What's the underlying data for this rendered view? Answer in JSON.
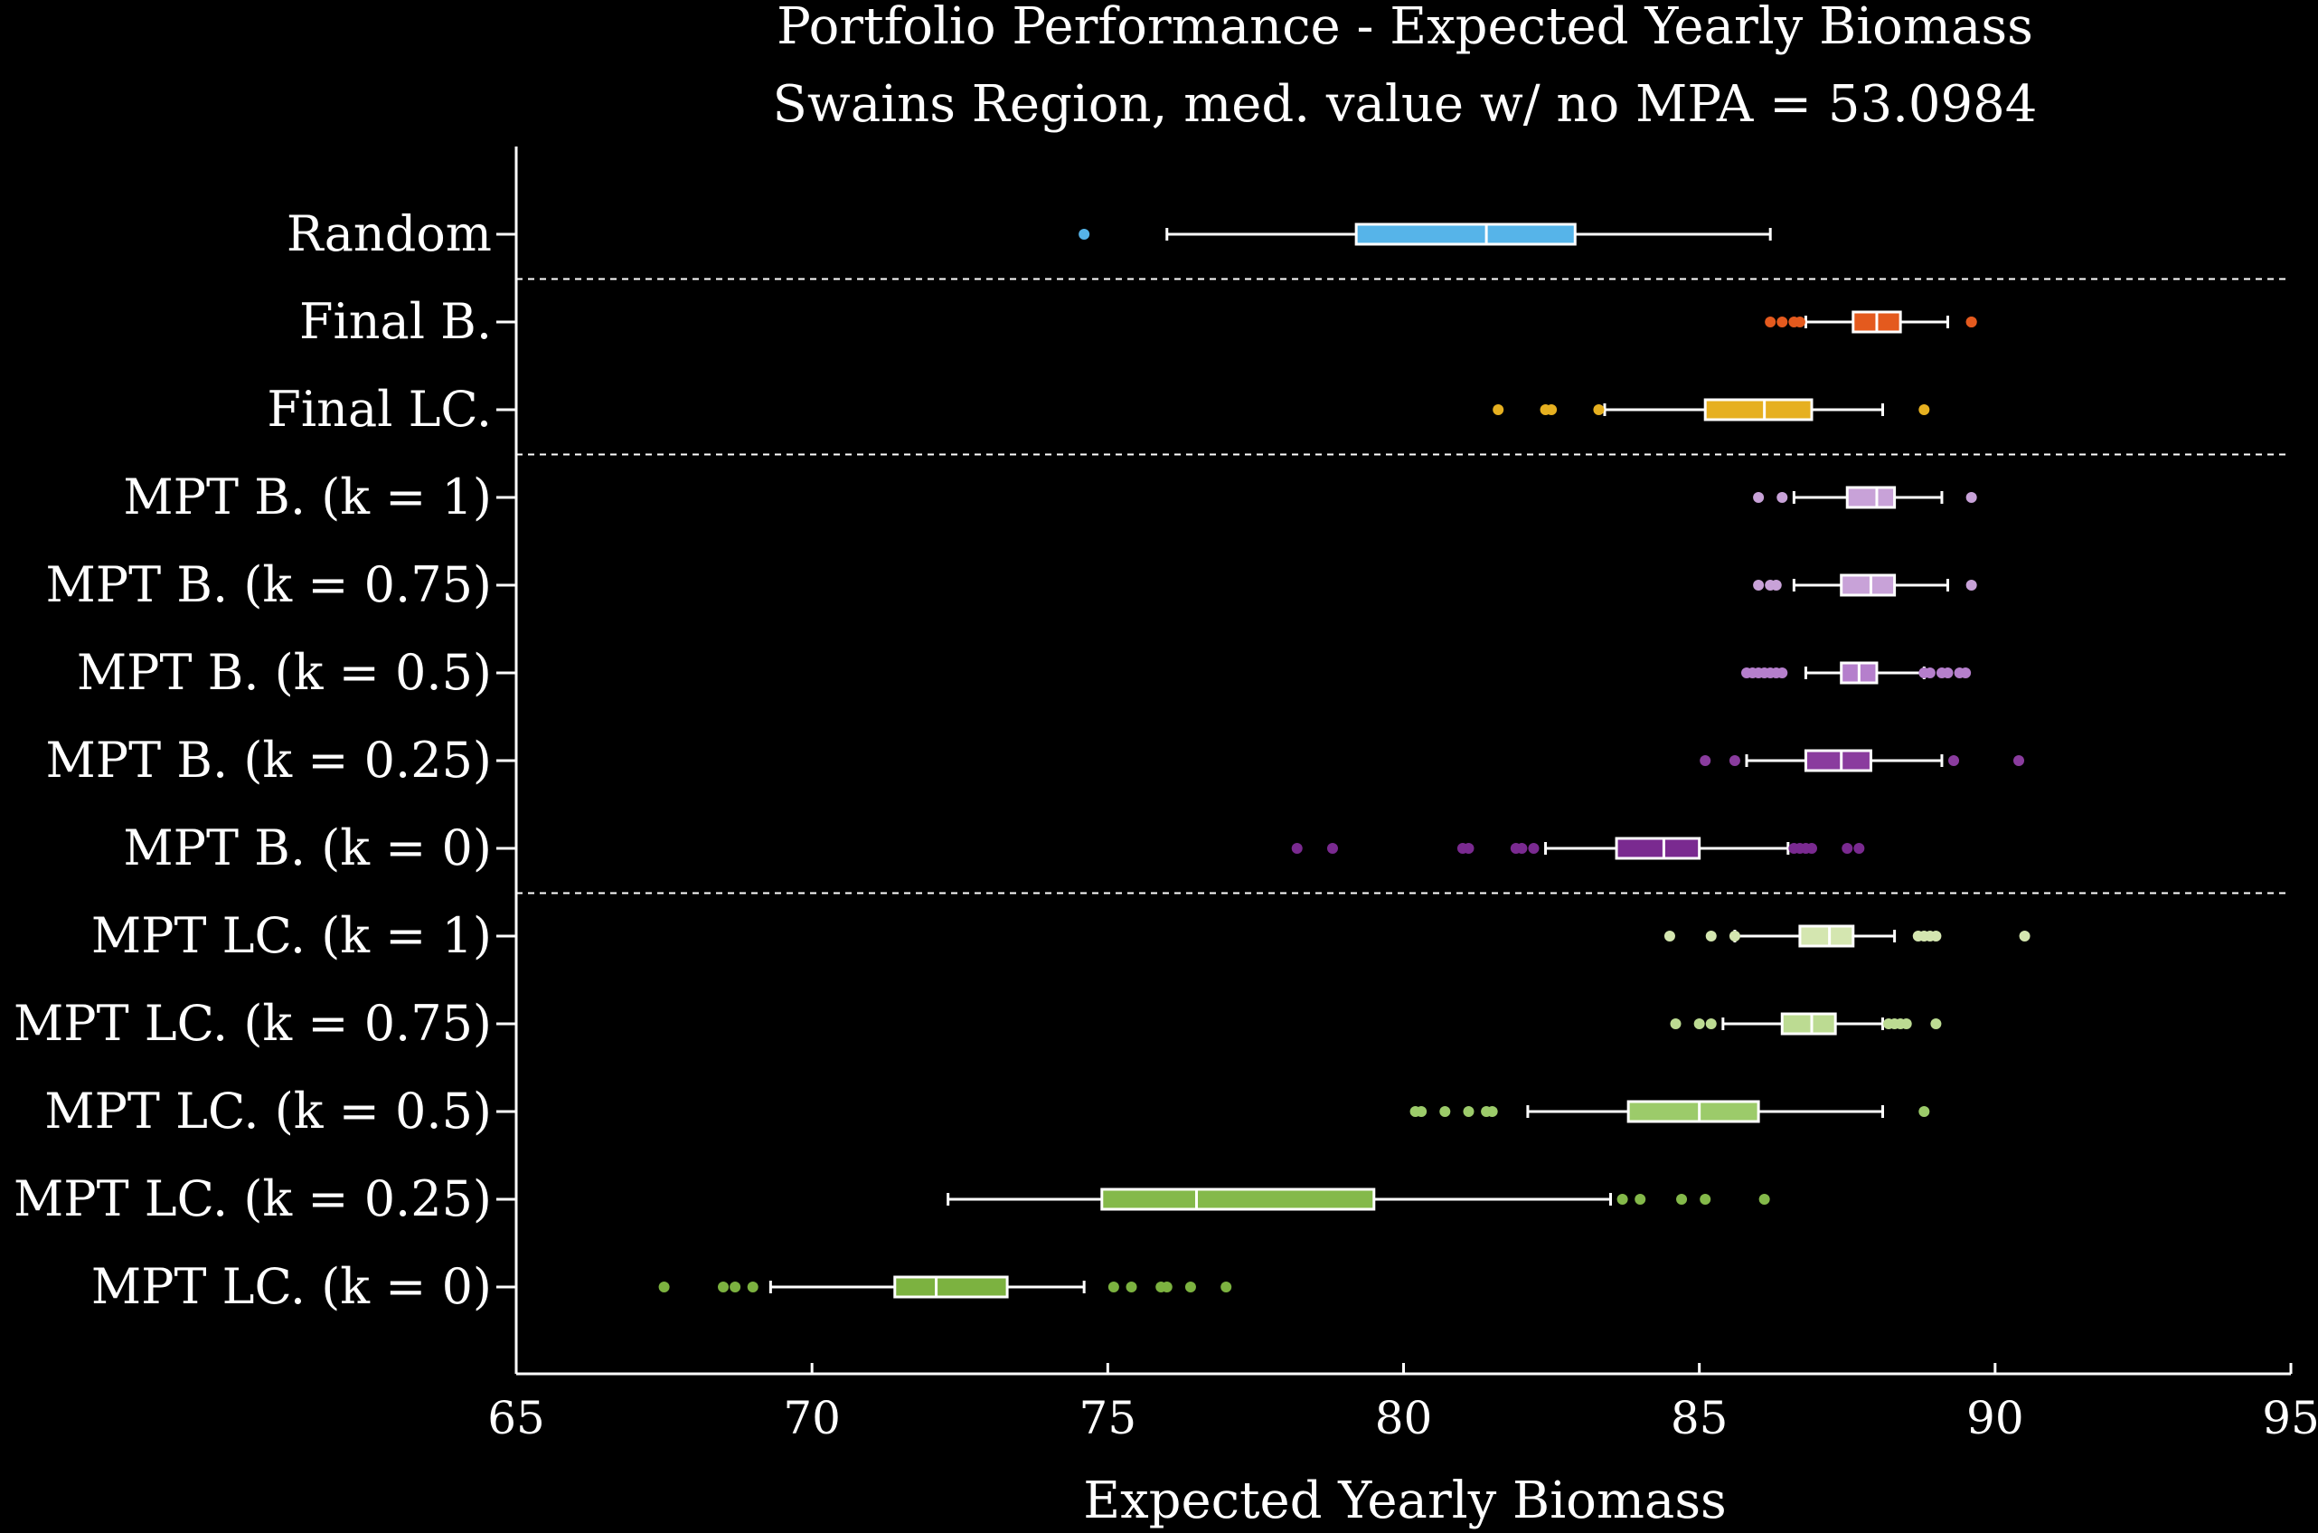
{
  "chart_data": {
    "type": "boxplot",
    "orientation": "horizontal",
    "title": "Portfolio Performance - Expected Yearly Biomass",
    "subtitle": "Swains Region, med. value w/ no MPA = 53.0984",
    "xlabel": "Expected Yearly Biomass",
    "xlim": [
      65,
      95
    ],
    "xticks": [
      65,
      70,
      75,
      80,
      85,
      90,
      95
    ],
    "grid": false,
    "group_separators_after": [
      "Random",
      "Final LC.",
      "MPT B. (k = 0)"
    ],
    "series": [
      {
        "label": "Random",
        "color": "#56b4e9",
        "whisker_low": 76.0,
        "q1": 79.2,
        "median": 81.4,
        "q3": 82.9,
        "whisker_high": 86.2,
        "outliers": [
          74.6
        ]
      },
      {
        "label": "Final B.",
        "color": "#e45a1e",
        "whisker_low": 86.8,
        "q1": 87.6,
        "median": 88.0,
        "q3": 88.4,
        "whisker_high": 89.2,
        "outliers": [
          86.2,
          86.4,
          86.6,
          86.7,
          89.6,
          89.6
        ]
      },
      {
        "label": "Final LC.",
        "color": "#e6b020",
        "whisker_low": 83.4,
        "q1": 85.1,
        "median": 86.1,
        "q3": 86.9,
        "whisker_high": 88.1,
        "outliers": [
          81.6,
          82.4,
          82.5,
          83.3,
          88.8
        ]
      },
      {
        "label": "MPT B. (k = 1)",
        "color": "#c8a2d8",
        "whisker_low": 86.6,
        "q1": 87.5,
        "median": 88.0,
        "q3": 88.3,
        "whisker_high": 89.1,
        "outliers": [
          86.0,
          86.4,
          89.6
        ]
      },
      {
        "label": "MPT B. (k = 0.75)",
        "color": "#c8a2d8",
        "whisker_low": 86.6,
        "q1": 87.4,
        "median": 87.9,
        "q3": 88.3,
        "whisker_high": 89.2,
        "outliers": [
          86.0,
          86.2,
          86.3,
          89.6
        ]
      },
      {
        "label": "MPT B. (k = 0.5)",
        "color": "#b57fcc",
        "whisker_low": 86.8,
        "q1": 87.4,
        "median": 87.7,
        "q3": 88.0,
        "whisker_high": 88.8,
        "outliers": [
          85.8,
          85.9,
          86.0,
          86.1,
          86.2,
          86.3,
          86.4,
          88.8,
          88.9,
          89.1,
          89.2,
          89.4,
          89.5
        ]
      },
      {
        "label": "MPT B. (k = 0.25)",
        "color": "#8a3c9e",
        "whisker_low": 85.8,
        "q1": 86.8,
        "median": 87.4,
        "q3": 87.9,
        "whisker_high": 89.1,
        "outliers": [
          85.1,
          85.6,
          89.3,
          90.4
        ]
      },
      {
        "label": "MPT B. (k = 0)",
        "color": "#7a2a90",
        "whisker_low": 82.4,
        "q1": 83.6,
        "median": 84.4,
        "q3": 85.0,
        "whisker_high": 86.5,
        "outliers": [
          78.2,
          78.8,
          81.0,
          81.1,
          81.9,
          82.0,
          82.2,
          86.6,
          86.7,
          86.8,
          86.9,
          87.5,
          87.7
        ]
      },
      {
        "label": "MPT LC. (k = 1)",
        "color": "#d4e6b0",
        "whisker_low": 85.6,
        "q1": 86.7,
        "median": 87.2,
        "q3": 87.6,
        "whisker_high": 88.3,
        "outliers": [
          84.5,
          85.2,
          85.6,
          88.7,
          88.8,
          88.9,
          89.0,
          90.5
        ]
      },
      {
        "label": "MPT LC. (k = 0.75)",
        "color": "#bcdb92",
        "whisker_low": 85.4,
        "q1": 86.4,
        "median": 86.9,
        "q3": 87.3,
        "whisker_high": 88.1,
        "outliers": [
          84.6,
          85.0,
          85.2,
          88.2,
          88.3,
          88.4,
          88.5,
          89.0
        ]
      },
      {
        "label": "MPT LC. (k = 0.5)",
        "color": "#9ccb6a",
        "whisker_low": 82.1,
        "q1": 83.8,
        "median": 85.0,
        "q3": 86.0,
        "whisker_high": 88.1,
        "outliers": [
          80.2,
          80.3,
          80.7,
          81.1,
          81.4,
          81.5,
          88.8
        ]
      },
      {
        "label": "MPT LC. (k = 0.25)",
        "color": "#84b94a",
        "whisker_low": 72.3,
        "q1": 74.9,
        "median": 76.5,
        "q3": 79.5,
        "whisker_high": 83.5,
        "outliers": [
          83.7,
          84.0,
          84.7,
          85.1,
          86.1
        ]
      },
      {
        "label": "MPT LC. (k = 0)",
        "color": "#7cb240",
        "whisker_low": 69.3,
        "q1": 71.4,
        "median": 72.1,
        "q3": 73.3,
        "whisker_high": 74.6,
        "outliers": [
          67.5,
          68.5,
          68.7,
          69.0,
          75.1,
          75.4,
          75.9,
          76.0,
          76.4,
          77.0
        ]
      }
    ]
  }
}
